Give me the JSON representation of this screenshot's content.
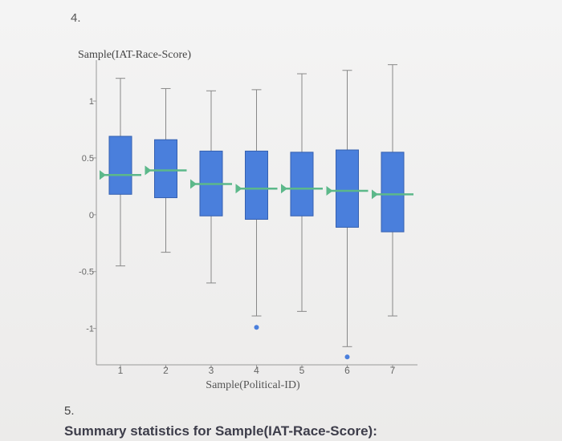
{
  "question_number": "4.",
  "chart_data": {
    "type": "box",
    "title": "Sample(IAT-Race-Score)",
    "x_label": "Sample(Political-ID)",
    "categories": [
      "1",
      "2",
      "3",
      "4",
      "5",
      "6",
      "7"
    ],
    "whisker_low": [
      -0.45,
      -0.33,
      -0.6,
      -0.89,
      -0.85,
      -1.16,
      -0.89
    ],
    "q1": [
      0.18,
      0.15,
      -0.01,
      -0.04,
      -0.01,
      -0.11,
      -0.15
    ],
    "median": [
      0.35,
      0.39,
      0.27,
      0.23,
      0.23,
      0.21,
      0.18
    ],
    "q3": [
      0.69,
      0.66,
      0.56,
      0.56,
      0.55,
      0.57,
      0.55
    ],
    "whisker_high": [
      1.2,
      1.11,
      1.09,
      1.1,
      1.24,
      1.27,
      1.32
    ],
    "outliers": [
      [],
      [],
      [],
      [
        -0.99
      ],
      [],
      [
        -1.25
      ],
      []
    ],
    "color": "#4a7fdc",
    "median_color": "#5cb88a",
    "ylim": [
      -1.32,
      1.36
    ],
    "yticks": [
      1,
      0.5,
      0,
      -0.5,
      -1
    ]
  },
  "next_number": "5.",
  "next_heading": "Summary statistics for Sample(IAT-Race-Score):"
}
